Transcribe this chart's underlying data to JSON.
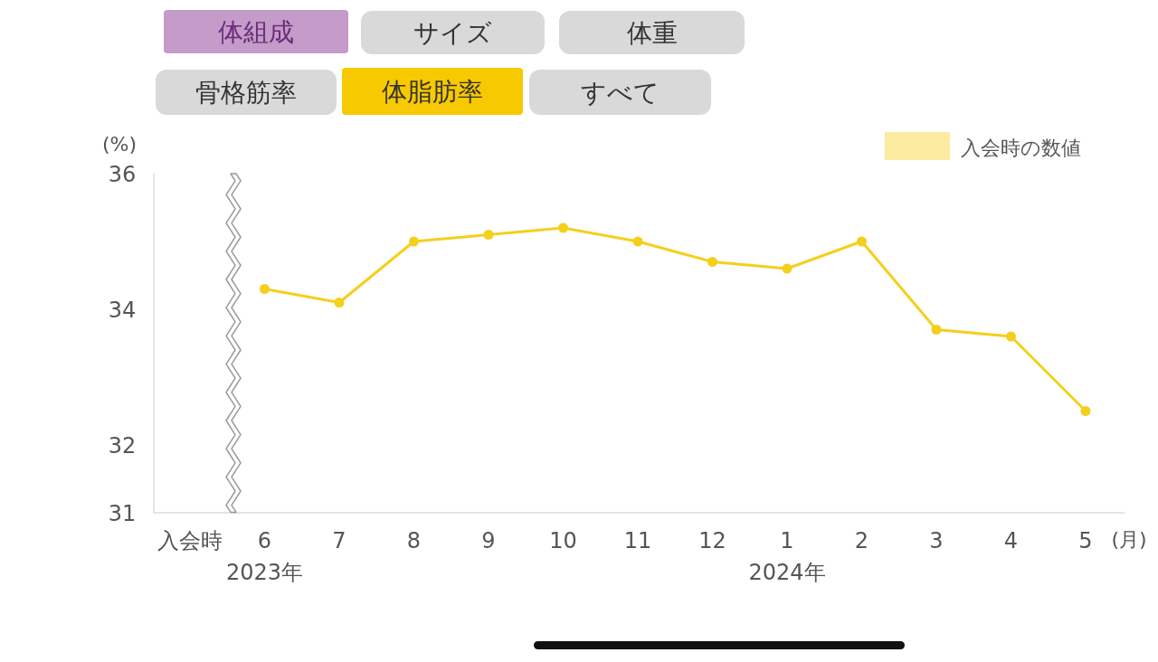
{
  "chart_data": {
    "type": "line",
    "ylabel": "(%)",
    "xlabel": "(月)",
    "categories": [
      "入会時",
      "6",
      "7",
      "8",
      "9",
      "10",
      "11",
      "12",
      "1",
      "2",
      "3",
      "4",
      "5"
    ],
    "series": [
      {
        "color": "#f5cf1d",
        "values": [
          null,
          34.3,
          34.1,
          35.0,
          35.1,
          35.2,
          35.0,
          34.7,
          34.6,
          35.0,
          33.7,
          33.6,
          32.5
        ]
      },
      {
        "name": "入会時の数値",
        "type": "bar",
        "color": "#fbeaa0",
        "values": [
          null,
          null,
          null,
          null,
          null,
          null,
          null,
          null,
          null,
          null,
          null,
          null,
          null
        ]
      }
    ],
    "ylim": [
      31,
      36
    ],
    "yticks": [
      31,
      32,
      34,
      36
    ],
    "grid": false,
    "legend": "top right",
    "marker": "circle",
    "line_style": "solid",
    "annotations": [
      "体組成",
      "サイズ",
      "体重",
      "骨格筋率",
      "体脂肪率",
      "すべて",
      "2023年",
      "2024年"
    ]
  }
}
